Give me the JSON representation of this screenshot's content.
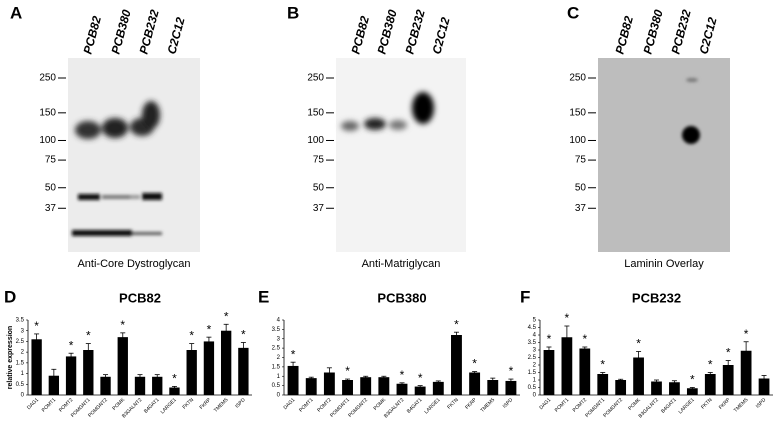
{
  "blots": [
    {
      "letter": "A",
      "lanes": [
        "PCB82",
        "PCB380",
        "PCB232",
        "C2C12"
      ],
      "markers": [
        250,
        150,
        100,
        75,
        50,
        37
      ],
      "caption": "Anti-Core Dystroglycan"
    },
    {
      "letter": "B",
      "lanes": [
        "PCB82",
        "PCB380",
        "PCB232",
        "C2C12"
      ],
      "markers": [
        250,
        150,
        100,
        75,
        50,
        37
      ],
      "caption": "Anti-Matriglycan"
    },
    {
      "letter": "C",
      "lanes": [
        "PCB82",
        "PCB380",
        "PCB232",
        "C2C12"
      ],
      "markers": [
        250,
        150,
        100,
        75,
        50,
        37
      ],
      "caption": "Laminin Overlay"
    }
  ],
  "chart_data": [
    {
      "type": "bar",
      "letter": "D",
      "title": "PCB82",
      "y_label": "relative expression",
      "categories": [
        "DAG1",
        "POMT1",
        "POMT2",
        "POMGNT1",
        "POMGNT2",
        "POMK",
        "B3GALNT2",
        "B4GAT1",
        "LARGE1",
        "FKTN",
        "FKRP",
        "TMEM5",
        "ISPD"
      ],
      "values": [
        2.6,
        0.9,
        1.8,
        2.1,
        0.85,
        2.7,
        0.85,
        0.85,
        0.35,
        2.1,
        2.5,
        3.0,
        2.2
      ],
      "errors": [
        0.25,
        0.3,
        0.15,
        0.3,
        0.1,
        0.2,
        0.1,
        0.1,
        0.05,
        0.3,
        0.2,
        0.3,
        0.25
      ],
      "significance": [
        "*",
        null,
        "*",
        "*",
        null,
        "*",
        null,
        null,
        "*",
        "*",
        "*",
        "*",
        "*"
      ],
      "color": "#000000",
      "ylim": [
        0,
        3.5
      ],
      "yticks": [
        0,
        0.5,
        1,
        1.5,
        2,
        2.5,
        3,
        3.5
      ]
    },
    {
      "type": "bar",
      "letter": "E",
      "title": "PCB380",
      "categories": [
        "DAG1",
        "POMT1",
        "POMT2",
        "POMGNT1",
        "POMGNT2",
        "POMK",
        "B3GALNT2",
        "B4GAT1",
        "LARGE1",
        "FKTN",
        "FKRP",
        "TMEM5",
        "ISPD"
      ],
      "values": [
        1.55,
        0.9,
        1.2,
        0.8,
        0.95,
        0.95,
        0.6,
        0.45,
        0.7,
        3.2,
        1.2,
        0.8,
        0.75
      ],
      "errors": [
        0.2,
        0.05,
        0.25,
        0.05,
        0.05,
        0.05,
        0.05,
        0.05,
        0.05,
        0.15,
        0.05,
        0.1,
        0.1
      ],
      "significance": [
        "*",
        null,
        null,
        "*",
        null,
        null,
        "*",
        "*",
        null,
        "*",
        "*",
        null,
        "*"
      ],
      "color": "#000000",
      "ylim": [
        0,
        4
      ],
      "yticks": [
        0,
        0.5,
        1,
        1.5,
        2,
        2.5,
        3,
        3.5,
        4
      ]
    },
    {
      "type": "bar",
      "letter": "F",
      "title": "PCB232",
      "categories": [
        "DAG1",
        "POMT1",
        "POMT2",
        "POMGNT1",
        "POMGNT2",
        "POMK",
        "B3GALNT2",
        "B4GAT1",
        "LARGE1",
        "FKTN",
        "FKRP",
        "TMEM5",
        "ISPD"
      ],
      "values": [
        3.0,
        3.85,
        3.1,
        1.4,
        1.0,
        2.5,
        0.9,
        0.85,
        0.45,
        1.4,
        2.0,
        2.95,
        1.1
      ],
      "errors": [
        0.2,
        0.75,
        0.1,
        0.1,
        0.05,
        0.4,
        0.1,
        0.1,
        0.05,
        0.1,
        0.3,
        0.6,
        0.2
      ],
      "significance": [
        "*",
        "*",
        "*",
        "*",
        null,
        "*",
        null,
        null,
        "*",
        "*",
        "*",
        "*",
        null
      ],
      "color": "#000000",
      "ylim": [
        0,
        5
      ],
      "yticks": [
        0,
        0.5,
        1,
        1.5,
        2,
        2.5,
        3,
        3.5,
        4,
        4.5,
        5
      ]
    }
  ]
}
